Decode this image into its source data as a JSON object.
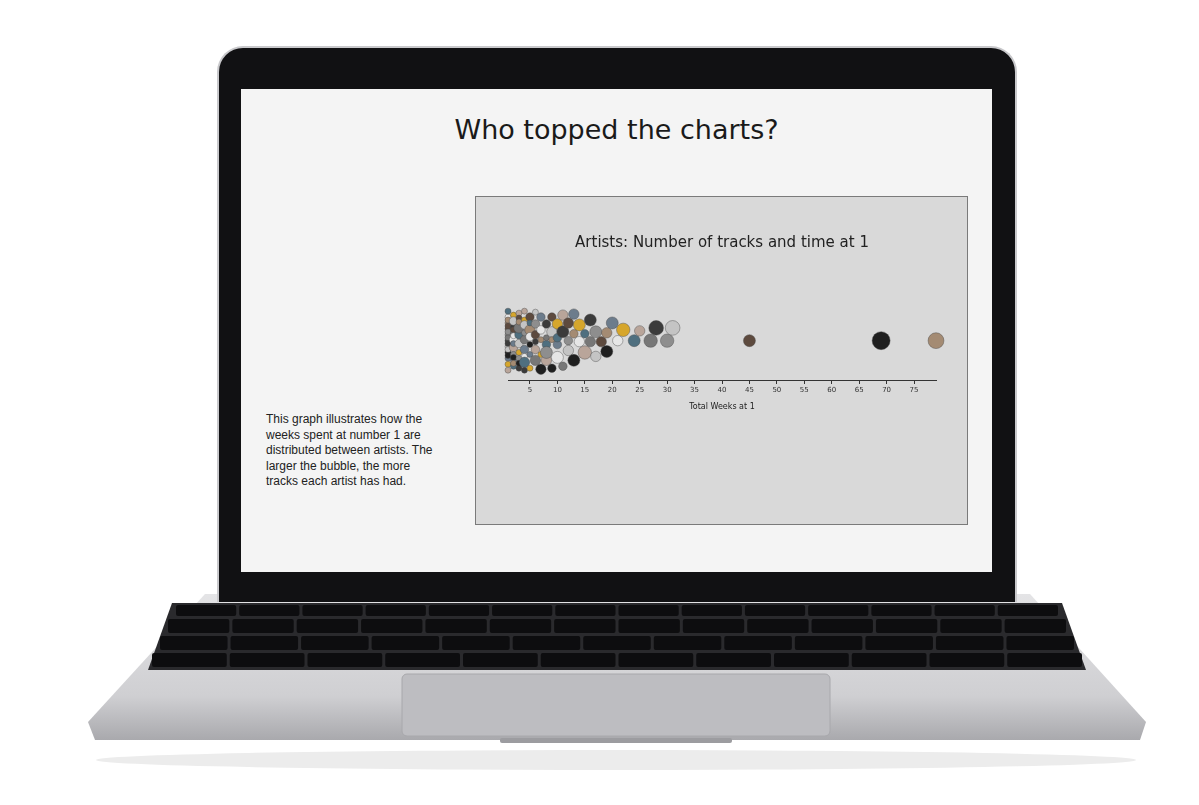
{
  "heading": "Who topped the charts?",
  "description": "This graph illustrates how the weeks spent at number 1 are distributed between artists. The larger the bubble, the more tracks each artist has had.",
  "chart_data": {
    "type": "bubble",
    "title": "Artists: Number of tracks and time at 1",
    "xlabel": "Total Weeks at 1",
    "x": [
      1,
      1,
      1,
      1,
      1,
      1,
      1,
      1,
      1,
      1,
      1,
      1,
      1,
      1,
      1,
      1,
      1,
      1,
      2,
      2,
      2,
      2,
      2,
      2,
      2,
      2,
      2,
      2,
      2,
      2,
      2,
      2,
      3,
      3,
      3,
      3,
      3,
      3,
      3,
      3,
      3,
      3,
      4,
      4,
      4,
      4,
      4,
      4,
      4,
      4,
      4,
      5,
      5,
      5,
      5,
      5,
      5,
      5,
      6,
      6,
      6,
      6,
      6,
      6,
      7,
      7,
      7,
      7,
      7,
      8,
      8,
      8,
      8,
      8,
      9,
      9,
      9,
      9,
      10,
      10,
      10,
      10,
      11,
      11,
      11,
      12,
      12,
      12,
      13,
      13,
      13,
      14,
      14,
      15,
      15,
      16,
      16,
      17,
      17,
      18,
      19,
      19,
      20,
      21,
      22,
      24,
      25,
      27,
      28,
      30,
      31,
      45,
      69,
      79
    ],
    "tracks": [
      1,
      1,
      1,
      1,
      1,
      1,
      1,
      1,
      1,
      1,
      1,
      1,
      1,
      1,
      1,
      1,
      1,
      1,
      1,
      2,
      1,
      1,
      2,
      1,
      1,
      1,
      2,
      1,
      1,
      1,
      1,
      1,
      1,
      2,
      1,
      3,
      1,
      1,
      2,
      1,
      1,
      1,
      2,
      1,
      1,
      3,
      1,
      2,
      1,
      1,
      2,
      2,
      1,
      3,
      1,
      2,
      1,
      1,
      2,
      3,
      1,
      2,
      1,
      2,
      3,
      1,
      2,
      2,
      1,
      2,
      3,
      1,
      2,
      4,
      3,
      2,
      2,
      1,
      2,
      4,
      3,
      2,
      3,
      2,
      4,
      2,
      3,
      3,
      4,
      2,
      3,
      3,
      4,
      2,
      5,
      3,
      4,
      4,
      3,
      3,
      4,
      3,
      4,
      3,
      5,
      4,
      3,
      5,
      6,
      5,
      6,
      4,
      9,
      7
    ],
    "xlim": [
      1,
      79
    ],
    "xticks": [
      5,
      10,
      15,
      20,
      25,
      30,
      35,
      40,
      45,
      50,
      55,
      60,
      65,
      70,
      75
    ],
    "tick_labels": "x",
    "grid": false
  }
}
